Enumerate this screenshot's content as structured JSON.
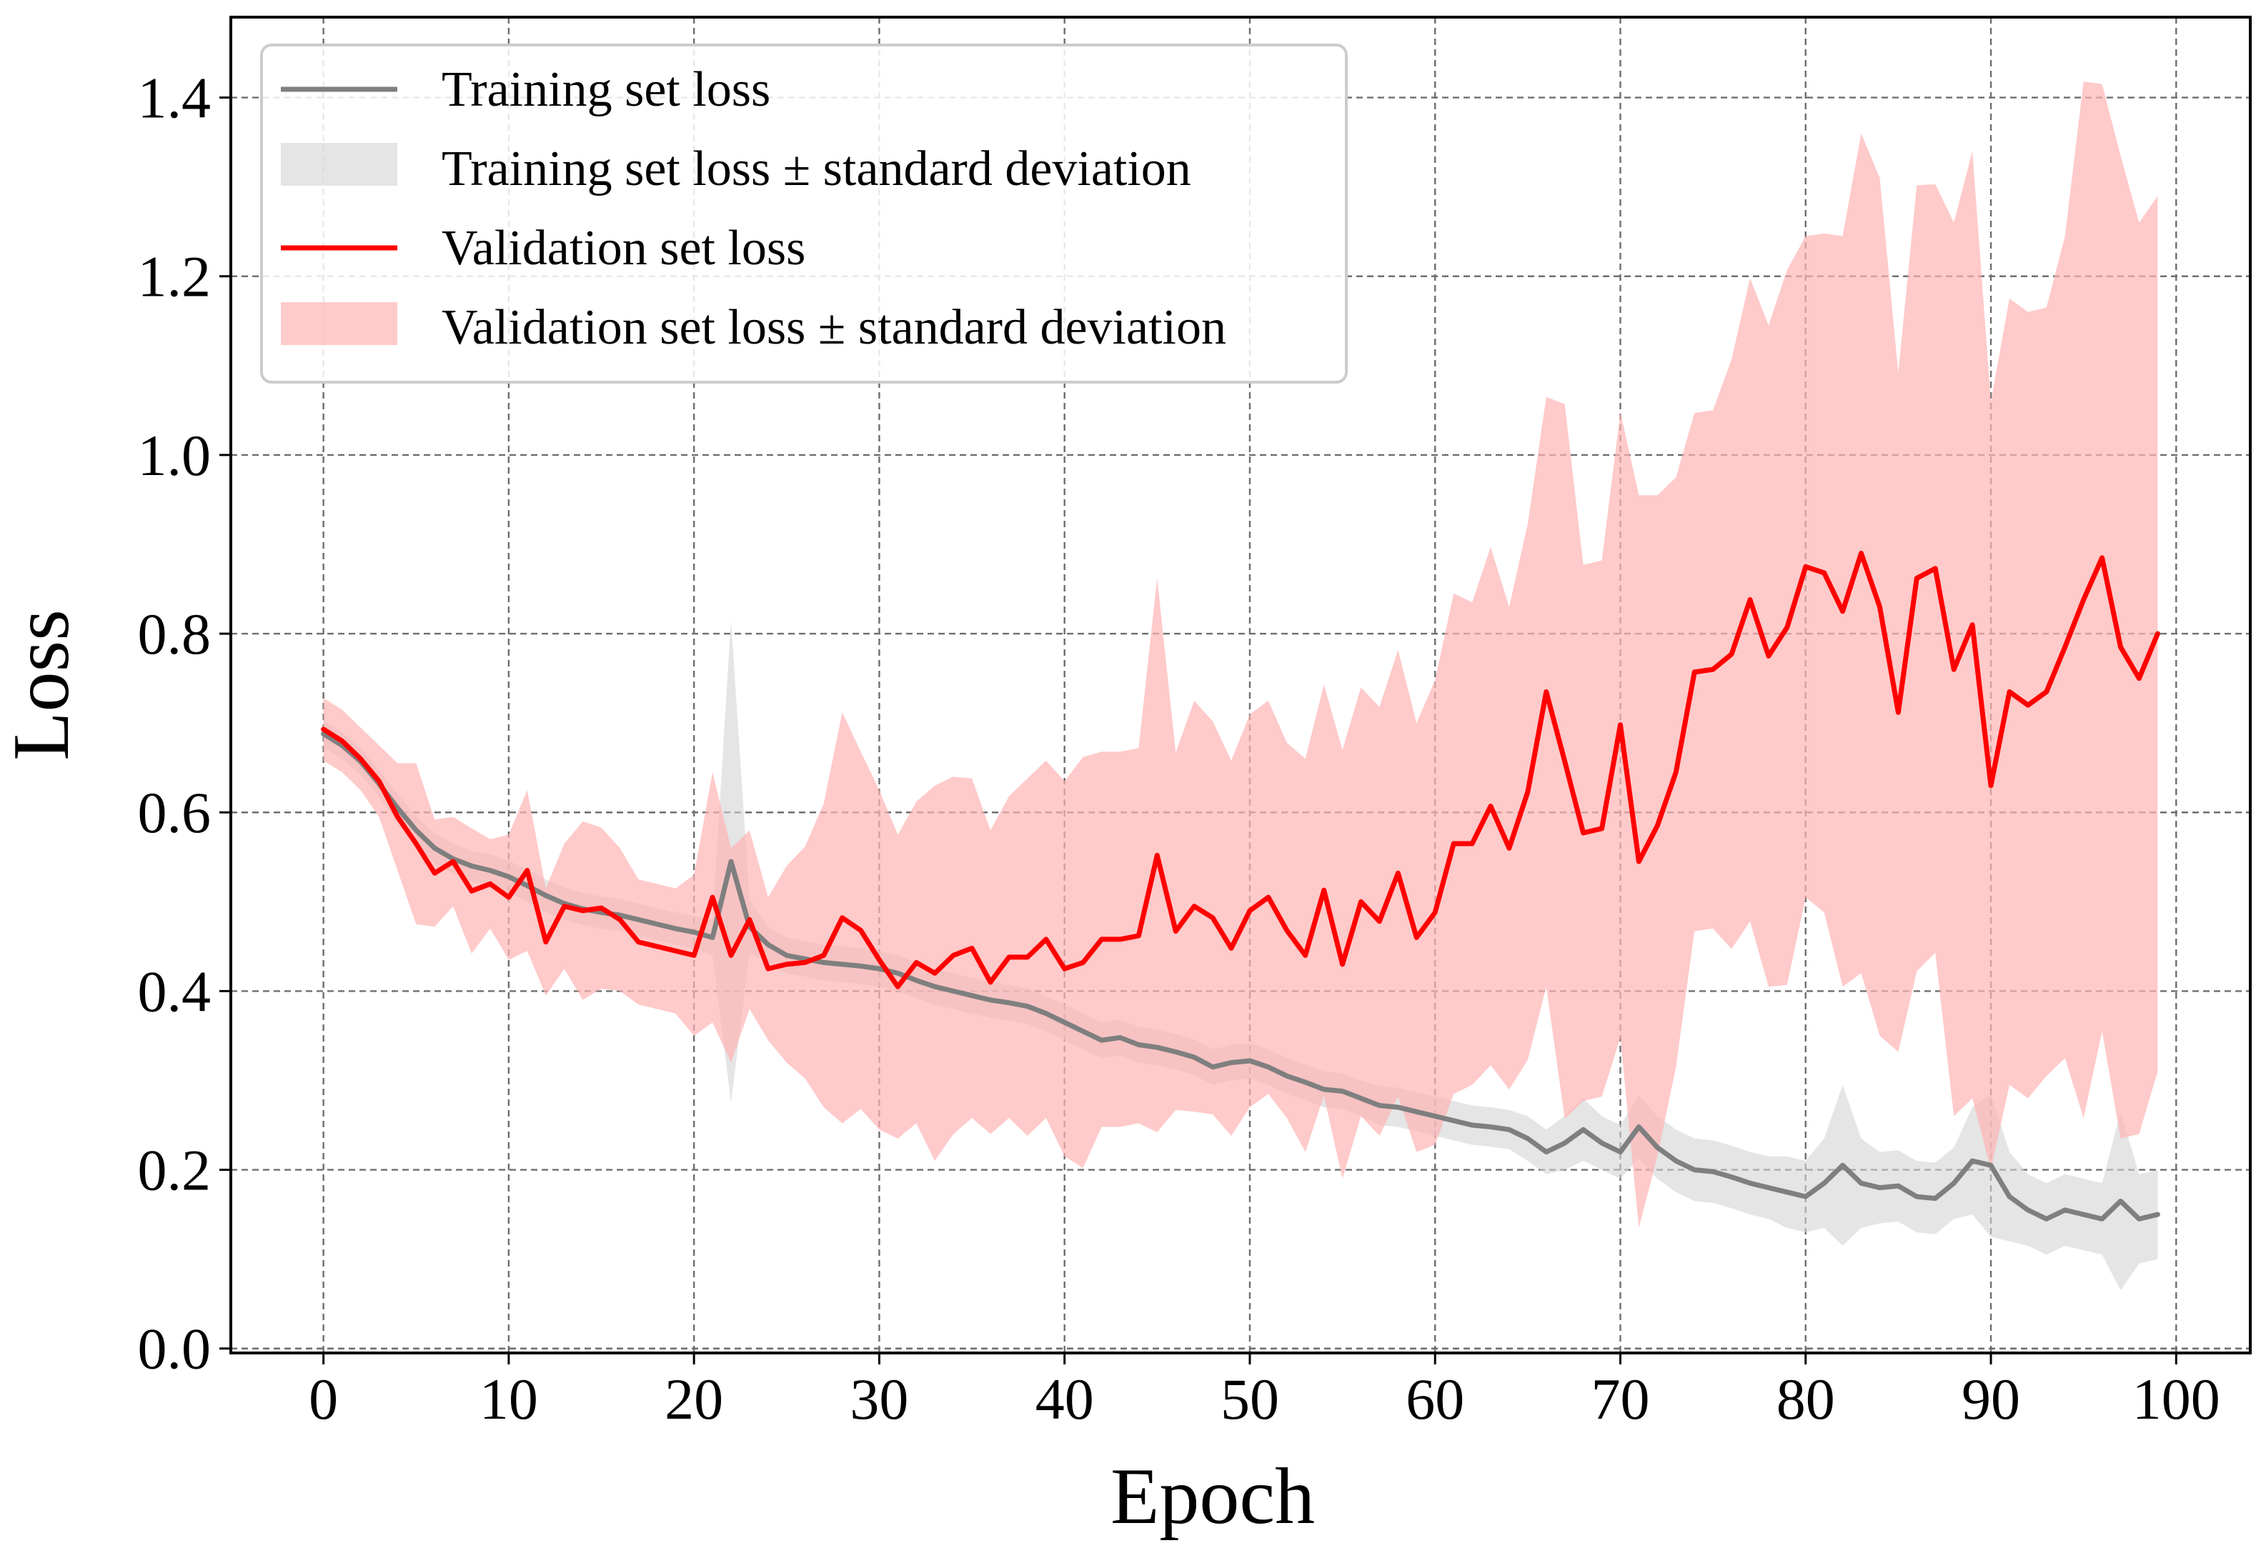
{
  "chart_data": {
    "type": "line",
    "xlabel": "Epoch",
    "ylabel": "Loss",
    "xlim": [
      -5,
      104
    ],
    "ylim": [
      -0.005,
      1.49
    ],
    "xticks": [
      0,
      10,
      20,
      30,
      40,
      50,
      60,
      70,
      80,
      90,
      100
    ],
    "xtick_labels": [
      "0",
      "10",
      "20",
      "30",
      "40",
      "50",
      "60",
      "70",
      "80",
      "90",
      "100"
    ],
    "yticks": [
      0.0,
      0.2,
      0.4,
      0.6,
      0.8,
      1.0,
      1.2,
      1.4
    ],
    "ytick_labels": [
      "0.0",
      "0.2",
      "0.4",
      "0.6",
      "0.8",
      "1.0",
      "1.2",
      "1.4"
    ],
    "grid": true,
    "legend_position": "top-left",
    "colors": {
      "train_line": "#7f7f7f",
      "train_band": "#d3d3d3",
      "val_line": "#ff0000",
      "val_band": "#ffb3b3"
    },
    "x": [
      0,
      1,
      2,
      3,
      4,
      5,
      6,
      7,
      8,
      9,
      10,
      11,
      12,
      13,
      14,
      15,
      16,
      17,
      18,
      19,
      20,
      21,
      22,
      23,
      24,
      25,
      26,
      27,
      28,
      29,
      30,
      31,
      32,
      33,
      34,
      35,
      36,
      37,
      38,
      39,
      40,
      41,
      42,
      43,
      44,
      45,
      46,
      47,
      48,
      49,
      50,
      51,
      52,
      53,
      54,
      55,
      56,
      57,
      58,
      59,
      60,
      61,
      62,
      63,
      64,
      65,
      66,
      67,
      68,
      69,
      70,
      71,
      72,
      73,
      74,
      75,
      76,
      77,
      78,
      79,
      80,
      81,
      82,
      83,
      84,
      85,
      86,
      87,
      88,
      89,
      90,
      91,
      92,
      93,
      94,
      95,
      96,
      97,
      98,
      99
    ],
    "series": [
      {
        "name": "Training set loss",
        "band_name": "Training set loss ± standard deviation",
        "values": [
          0.688,
          0.675,
          0.657,
          0.632,
          0.605,
          0.58,
          0.56,
          0.548,
          0.54,
          0.535,
          0.528,
          0.518,
          0.507,
          0.498,
          0.492,
          0.488,
          0.485,
          0.48,
          0.475,
          0.47,
          0.466,
          0.46,
          0.545,
          0.472,
          0.452,
          0.44,
          0.436,
          0.432,
          0.43,
          0.428,
          0.425,
          0.42,
          0.412,
          0.405,
          0.4,
          0.395,
          0.39,
          0.387,
          0.383,
          0.375,
          0.365,
          0.355,
          0.345,
          0.348,
          0.34,
          0.337,
          0.332,
          0.326,
          0.315,
          0.32,
          0.322,
          0.315,
          0.305,
          0.298,
          0.29,
          0.288,
          0.28,
          0.272,
          0.27,
          0.265,
          0.26,
          0.255,
          0.25,
          0.248,
          0.245,
          0.235,
          0.22,
          0.23,
          0.245,
          0.23,
          0.22,
          0.248,
          0.225,
          0.21,
          0.2,
          0.198,
          0.192,
          0.185,
          0.18,
          0.175,
          0.17,
          0.185,
          0.205,
          0.185,
          0.18,
          0.182,
          0.17,
          0.168,
          0.185,
          0.21,
          0.205,
          0.17,
          0.155,
          0.145,
          0.155,
          0.15,
          0.145,
          0.165,
          0.145,
          0.15
        ],
        "std": [
          0.015,
          0.015,
          0.015,
          0.015,
          0.016,
          0.016,
          0.017,
          0.017,
          0.017,
          0.018,
          0.018,
          0.018,
          0.018,
          0.018,
          0.018,
          0.018,
          0.018,
          0.018,
          0.018,
          0.018,
          0.018,
          0.02,
          0.27,
          0.03,
          0.02,
          0.02,
          0.02,
          0.02,
          0.02,
          0.02,
          0.02,
          0.02,
          0.02,
          0.02,
          0.02,
          0.02,
          0.02,
          0.02,
          0.02,
          0.02,
          0.02,
          0.02,
          0.02,
          0.02,
          0.02,
          0.02,
          0.02,
          0.02,
          0.02,
          0.02,
          0.02,
          0.02,
          0.02,
          0.02,
          0.02,
          0.02,
          0.02,
          0.022,
          0.022,
          0.022,
          0.022,
          0.022,
          0.022,
          0.022,
          0.022,
          0.025,
          0.025,
          0.03,
          0.035,
          0.03,
          0.03,
          0.035,
          0.035,
          0.035,
          0.035,
          0.035,
          0.035,
          0.035,
          0.035,
          0.04,
          0.04,
          0.05,
          0.09,
          0.05,
          0.04,
          0.04,
          0.04,
          0.04,
          0.04,
          0.06,
          0.08,
          0.05,
          0.04,
          0.04,
          0.04,
          0.04,
          0.04,
          0.1,
          0.05,
          0.05
        ]
      },
      {
        "name": "Validation set loss",
        "band_name": "Validation set loss ± standard deviation",
        "values": [
          0.693,
          0.68,
          0.66,
          0.635,
          0.595,
          0.565,
          0.532,
          0.545,
          0.512,
          0.52,
          0.505,
          0.535,
          0.455,
          0.495,
          0.49,
          0.493,
          0.48,
          0.455,
          0.45,
          0.445,
          0.44,
          0.505,
          0.44,
          0.48,
          0.425,
          0.43,
          0.432,
          0.44,
          0.482,
          0.468,
          0.435,
          0.405,
          0.432,
          0.42,
          0.44,
          0.448,
          0.41,
          0.438,
          0.438,
          0.458,
          0.425,
          0.432,
          0.458,
          0.458,
          0.462,
          0.552,
          0.467,
          0.495,
          0.482,
          0.448,
          0.49,
          0.505,
          0.468,
          0.44,
          0.513,
          0.43,
          0.5,
          0.478,
          0.532,
          0.46,
          0.488,
          0.565,
          0.565,
          0.607,
          0.56,
          0.623,
          0.735,
          0.657,
          0.577,
          0.582,
          0.698,
          0.545,
          0.585,
          0.645,
          0.757,
          0.76,
          0.777,
          0.838,
          0.775,
          0.807,
          0.875,
          0.868,
          0.825,
          0.89,
          0.83,
          0.712,
          0.862,
          0.873,
          0.76,
          0.81,
          0.63,
          0.735,
          0.72,
          0.735,
          0.785,
          0.838,
          0.885,
          0.785,
          0.75,
          0.8
        ],
        "std": [
          0.035,
          0.035,
          0.035,
          0.04,
          0.06,
          0.09,
          0.06,
          0.05,
          0.07,
          0.05,
          0.07,
          0.09,
          0.06,
          0.07,
          0.1,
          0.09,
          0.08,
          0.07,
          0.07,
          0.07,
          0.09,
          0.14,
          0.12,
          0.1,
          0.08,
          0.11,
          0.13,
          0.17,
          0.23,
          0.2,
          0.19,
          0.17,
          0.18,
          0.21,
          0.2,
          0.19,
          0.17,
          0.18,
          0.2,
          0.2,
          0.21,
          0.23,
          0.21,
          0.21,
          0.21,
          0.31,
          0.2,
          0.23,
          0.22,
          0.21,
          0.22,
          0.22,
          0.21,
          0.22,
          0.23,
          0.24,
          0.24,
          0.24,
          0.25,
          0.24,
          0.26,
          0.28,
          0.27,
          0.29,
          0.27,
          0.3,
          0.33,
          0.4,
          0.3,
          0.3,
          0.35,
          0.41,
          0.37,
          0.33,
          0.29,
          0.29,
          0.33,
          0.36,
          0.37,
          0.4,
          0.37,
          0.38,
          0.42,
          0.47,
          0.48,
          0.38,
          0.44,
          0.43,
          0.5,
          0.53,
          0.43,
          0.44,
          0.44,
          0.43,
          0.46,
          0.58,
          0.53,
          0.55,
          0.51,
          0.49
        ]
      }
    ]
  }
}
